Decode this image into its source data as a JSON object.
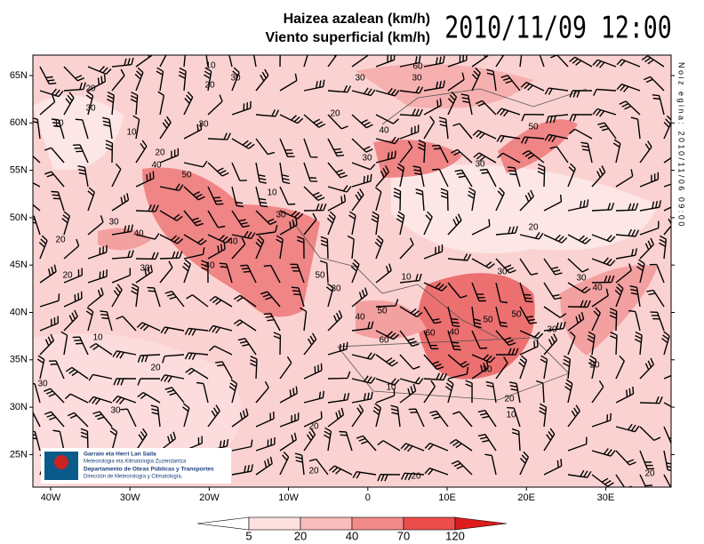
{
  "header": {
    "title_eu": "Haizea azalean (km/h)",
    "title_es": "Viento superficial (km/h)",
    "valid_time": "2010/11/09 12:00"
  },
  "issued": "Noiz egina: 2010/11/06 09:00",
  "lat_labels": [
    "65N",
    "60N",
    "55N",
    "50N",
    "45N",
    "40N",
    "35N",
    "30N",
    "25N"
  ],
  "lon_labels": [
    "40W",
    "30W",
    "20W",
    "10W",
    "0",
    "10E",
    "20E",
    "30E"
  ],
  "contour_labels": [
    10,
    20,
    20,
    30,
    30,
    60,
    30,
    10,
    30,
    10,
    30,
    20,
    40,
    50,
    20,
    50,
    40,
    30,
    30,
    10,
    30,
    40,
    20,
    30,
    40,
    40,
    30,
    20,
    50,
    30,
    10,
    30,
    20,
    30,
    40,
    10,
    50,
    60,
    40,
    50,
    50,
    60,
    40,
    20,
    30,
    30,
    30,
    10,
    20,
    10,
    20,
    20,
    20,
    20,
    20,
    30
  ],
  "legend": {
    "levels": [
      5,
      20,
      40,
      70,
      120
    ],
    "colors": [
      "#ffffff",
      "#fde0e0",
      "#f9bcbc",
      "#f28a8a",
      "#ee4d4d",
      "#dd1c1c"
    ]
  },
  "logo": {
    "line1": "Garraio eta Herri Lan Saila",
    "line2": "Meteorologia eta Klimatologia Zuzendaritza",
    "line3": "Departamento de Obras Públicas y Transportes",
    "line4": "Dirección de Meteorología y Climatología."
  }
}
